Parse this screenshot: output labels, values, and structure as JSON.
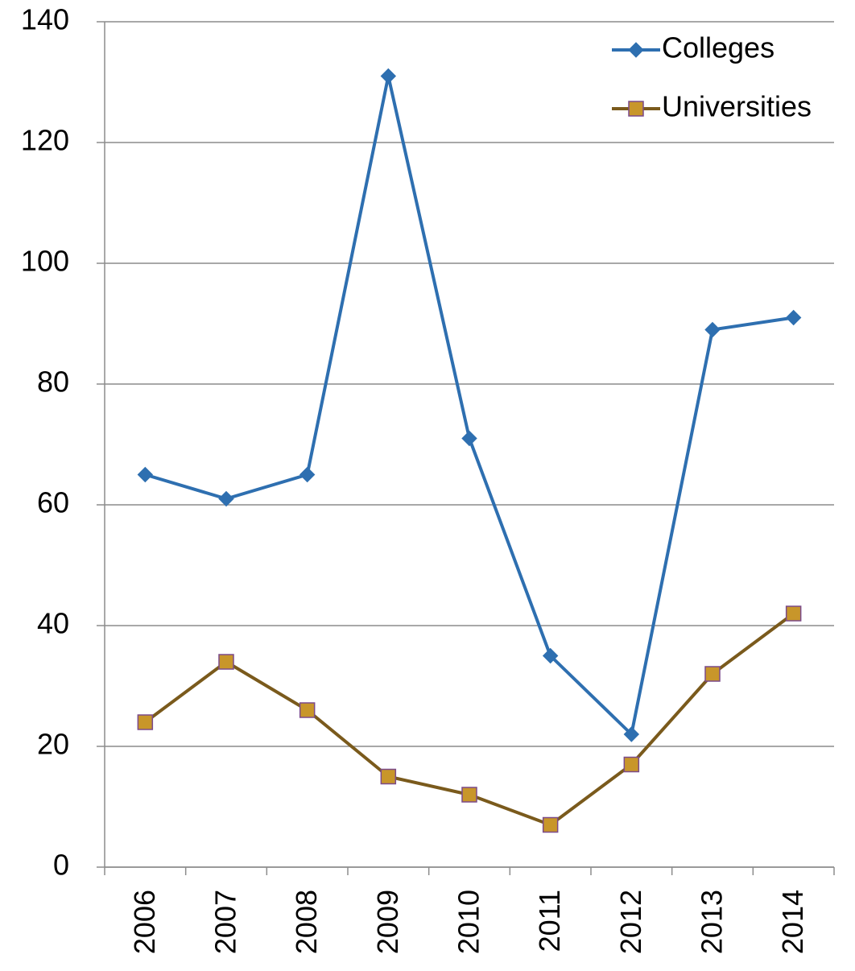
{
  "chart_data": {
    "type": "line",
    "categories": [
      "2006",
      "2007",
      "2008",
      "2009",
      "2010",
      "2011",
      "2012",
      "2013",
      "2014"
    ],
    "series": [
      {
        "name": "Colleges",
        "color": "#2e6fb0",
        "marker": "diamond",
        "marker_fill": "#2e6fb0",
        "marker_stroke": "#2e6fb0",
        "values": [
          65,
          61,
          65,
          131,
          71,
          35,
          22,
          89,
          91
        ]
      },
      {
        "name": "Universities",
        "color": "#7a5a1c",
        "marker": "square",
        "marker_fill": "#c8962a",
        "marker_stroke": "#7b4a8a",
        "values": [
          24,
          34,
          26,
          15,
          12,
          7,
          17,
          32,
          42
        ]
      }
    ],
    "ylim": [
      0,
      140
    ],
    "yticks": [
      0,
      20,
      40,
      60,
      80,
      100,
      120,
      140
    ],
    "grid": true,
    "legend": "top-right"
  }
}
